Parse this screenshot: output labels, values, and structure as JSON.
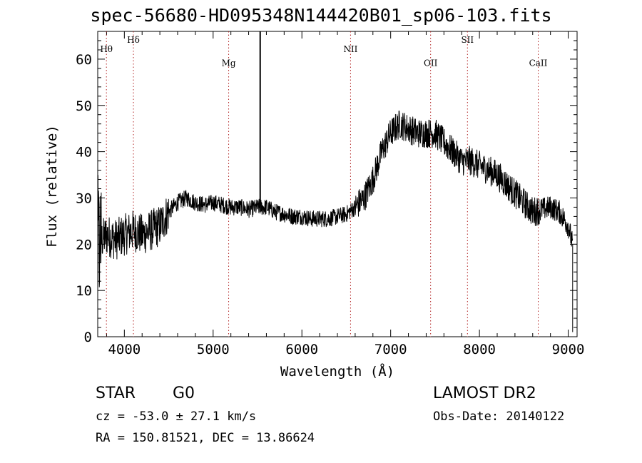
{
  "chart_data": {
    "type": "line",
    "title": "spec-56680-HD095348N144420B01_sp06-103.fits",
    "xlabel": "Wavelength (Å)",
    "ylabel": "Flux (relative)",
    "xlim": [
      3700,
      9100
    ],
    "ylim": [
      0,
      66
    ],
    "xticks": [
      4000,
      5000,
      6000,
      7000,
      8000,
      9000
    ],
    "yticks": [
      0,
      10,
      20,
      30,
      40,
      50,
      60
    ],
    "grid": false,
    "lines": [
      {
        "name": "Hθ",
        "x": 3798,
        "label_y": 61.5
      },
      {
        "name": "Hδ",
        "x": 4102,
        "label_y": 63.5
      },
      {
        "name": "Mg",
        "x": 5175,
        "label_y": 58.5
      },
      {
        "name": "NII",
        "x": 6548,
        "label_y": 61.5
      },
      {
        "name": "OII",
        "x": 7450,
        "label_y": 58.5
      },
      {
        "name": "SII",
        "x": 7865,
        "label_y": 63.5
      },
      {
        "name": "CaII",
        "x": 8662,
        "label_y": 58.5
      }
    ],
    "spike": {
      "x": 5530,
      "y_top": 66,
      "y_bottom": 27
    },
    "continuum": [
      [
        3700,
        20
      ],
      [
        3800,
        22
      ],
      [
        3900,
        21
      ],
      [
        4000,
        22
      ],
      [
        4100,
        23
      ],
      [
        4200,
        22
      ],
      [
        4300,
        23
      ],
      [
        4400,
        24
      ],
      [
        4500,
        27
      ],
      [
        4600,
        29
      ],
      [
        4700,
        30
      ],
      [
        4800,
        29
      ],
      [
        4900,
        28.5
      ],
      [
        5000,
        29
      ],
      [
        5100,
        28.5
      ],
      [
        5200,
        28
      ],
      [
        5300,
        28
      ],
      [
        5400,
        27.5
      ],
      [
        5500,
        28
      ],
      [
        5600,
        28
      ],
      [
        5700,
        27
      ],
      [
        5800,
        26.5
      ],
      [
        5900,
        26
      ],
      [
        6000,
        26
      ],
      [
        6100,
        25.5
      ],
      [
        6200,
        25.5
      ],
      [
        6300,
        25.5
      ],
      [
        6400,
        26
      ],
      [
        6500,
        26.5
      ],
      [
        6600,
        28
      ],
      [
        6700,
        30
      ],
      [
        6800,
        34
      ],
      [
        6900,
        40
      ],
      [
        7000,
        44
      ],
      [
        7100,
        46
      ],
      [
        7200,
        45
      ],
      [
        7300,
        44
      ],
      [
        7400,
        44
      ],
      [
        7500,
        44
      ],
      [
        7600,
        42
      ],
      [
        7700,
        40
      ],
      [
        7800,
        38
      ],
      [
        7900,
        38
      ],
      [
        8000,
        37
      ],
      [
        8100,
        36
      ],
      [
        8200,
        35
      ],
      [
        8300,
        33
      ],
      [
        8400,
        31
      ],
      [
        8500,
        29
      ],
      [
        8600,
        27
      ],
      [
        8700,
        27.5
      ],
      [
        8800,
        28
      ],
      [
        8900,
        27
      ],
      [
        9000,
        24
      ],
      [
        9050,
        20
      ]
    ]
  },
  "footer": {
    "object_class": "STAR",
    "subclass": "G0",
    "survey": "LAMOST DR2",
    "redshift": "cz = -53.0 ± 27.1 km/s",
    "obs_date": "Obs-Date: 20140122",
    "coords": "RA = 150.81521, DEC =  13.86624"
  }
}
